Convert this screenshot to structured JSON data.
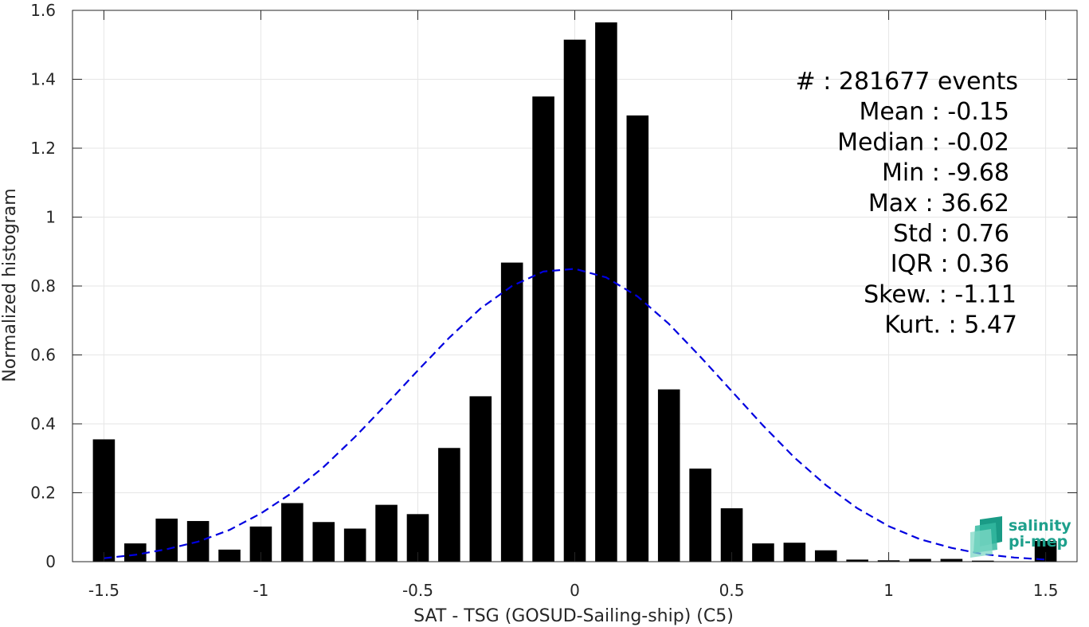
{
  "chart_data": {
    "type": "bar",
    "xlabel": "SAT - TSG (GOSUD-Sailing-ship) (C5)",
    "ylabel": "Normalized histogram",
    "xlim": [
      -1.6,
      1.6
    ],
    "ylim": [
      0,
      1.6
    ],
    "x_ticks": [
      -1.5,
      -1,
      -0.5,
      0,
      0.5,
      1,
      1.5
    ],
    "x_tick_labels": [
      "-1.5",
      "-1",
      "-0.5",
      "0",
      "0.5",
      "1",
      "1.5"
    ],
    "y_ticks": [
      0,
      0.2,
      0.4,
      0.6,
      0.8,
      1,
      1.2,
      1.4,
      1.6
    ],
    "y_tick_labels": [
      "0",
      "0.2",
      "0.4",
      "0.6",
      "0.8",
      "1",
      "1.2",
      "1.4",
      "1.6"
    ],
    "grid": true,
    "bar_width": 0.07,
    "bar_color": "#000000",
    "x": [
      -1.5,
      -1.4,
      -1.3,
      -1.2,
      -1.1,
      -1.0,
      -0.9,
      -0.8,
      -0.7,
      -0.6,
      -0.5,
      -0.4,
      -0.3,
      -0.2,
      -0.1,
      0.0,
      0.1,
      0.2,
      0.3,
      0.4,
      0.5,
      0.6,
      0.7,
      0.8,
      0.9,
      1.0,
      1.1,
      1.2,
      1.3,
      1.5
    ],
    "values": [
      0.355,
      0.053,
      0.125,
      0.118,
      0.035,
      0.102,
      0.17,
      0.115,
      0.096,
      0.165,
      0.138,
      0.33,
      0.48,
      0.868,
      1.35,
      1.515,
      1.565,
      1.295,
      0.5,
      0.27,
      0.155,
      0.053,
      0.055,
      0.033,
      0.006,
      0.004,
      0.008,
      0.008,
      0.003,
      0.06
    ],
    "fit_curve": {
      "style": "dashed",
      "color": "#0000e0",
      "x": [
        -1.5,
        -1.4,
        -1.3,
        -1.2,
        -1.1,
        -1.0,
        -0.9,
        -0.8,
        -0.7,
        -0.6,
        -0.5,
        -0.4,
        -0.3,
        -0.2,
        -0.1,
        0.0,
        0.1,
        0.2,
        0.3,
        0.4,
        0.5,
        0.6,
        0.7,
        0.8,
        0.9,
        1.0,
        1.1,
        1.2,
        1.3,
        1.4,
        1.5
      ],
      "y": [
        0.01,
        0.02,
        0.036,
        0.058,
        0.092,
        0.14,
        0.2,
        0.275,
        0.362,
        0.457,
        0.555,
        0.65,
        0.735,
        0.8,
        0.842,
        0.85,
        0.825,
        0.77,
        0.69,
        0.595,
        0.495,
        0.395,
        0.302,
        0.222,
        0.155,
        0.103,
        0.065,
        0.04,
        0.022,
        0.012,
        0.006
      ]
    },
    "stats_lines": [
      "#  : 281677 events",
      "Mean : -0.15",
      "Median : -0.02",
      "Min : -9.68",
      "Max : 36.62",
      "Std : 0.76",
      "IQR : 0.36",
      "Skew. : -1.11",
      "Kurt. : 5.47"
    ]
  },
  "logo": {
    "line1": "salinity",
    "line2": "pi-mep",
    "color": "#1ea08c"
  }
}
